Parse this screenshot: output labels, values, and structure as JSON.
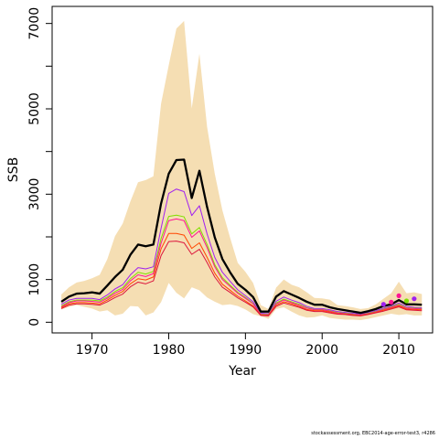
{
  "chart_data": {
    "type": "line",
    "title": "",
    "xlabel": "Year",
    "ylabel": "SSB",
    "xlim": [
      1964.8,
      2014.4
    ],
    "ylim": [
      -250,
      7400
    ],
    "xticks": [
      1970,
      1980,
      1990,
      2000,
      2010
    ],
    "yticks": [
      0,
      1000,
      3000,
      5000,
      7000
    ],
    "yticks_minor": [
      2000,
      4000,
      6000
    ],
    "grid": false,
    "legend": "none",
    "years": [
      1966,
      1967,
      1968,
      1969,
      1970,
      1971,
      1972,
      1973,
      1974,
      1975,
      1976,
      1977,
      1978,
      1979,
      1980,
      1981,
      1982,
      1983,
      1984,
      1985,
      1986,
      1987,
      1988,
      1989,
      1990,
      1991,
      1992,
      1993,
      1994,
      1995,
      1996,
      1997,
      1998,
      1999,
      2000,
      2001,
      2002,
      2003,
      2004,
      2005,
      2006,
      2007,
      2008,
      2009,
      2010,
      2011,
      2012,
      2013
    ],
    "confidence_band": {
      "color": "#f5deb3",
      "upper": [
        650,
        820,
        930,
        970,
        1030,
        1110,
        1480,
        2020,
        2310,
        2830,
        3280,
        3330,
        3420,
        5120,
        6020,
        6880,
        7060,
        5010,
        6290,
        4580,
        3480,
        2620,
        1980,
        1390,
        1180,
        920,
        400,
        310,
        810,
        1000,
        880,
        820,
        700,
        570,
        560,
        530,
        400,
        380,
        350,
        310,
        330,
        420,
        550,
        680,
        950,
        680,
        700,
        660
      ],
      "lower": [
        300,
        360,
        400,
        360,
        320,
        250,
        280,
        160,
        200,
        380,
        370,
        160,
        230,
        470,
        920,
        690,
        560,
        820,
        750,
        580,
        480,
        400,
        420,
        380,
        300,
        190,
        140,
        80,
        310,
        350,
        250,
        160,
        110,
        120,
        160,
        100,
        80,
        60,
        60,
        50,
        80,
        120,
        160,
        200,
        170,
        190,
        160,
        160
      ]
    },
    "series": [
      {
        "color": "#000000",
        "width": 2.3,
        "values": [
          480,
          600,
          670,
          680,
          700,
          670,
          860,
          1060,
          1230,
          1580,
          1820,
          1780,
          1820,
          2780,
          3480,
          3800,
          3810,
          2910,
          3550,
          2700,
          1990,
          1480,
          1170,
          900,
          760,
          590,
          250,
          250,
          600,
          730,
          650,
          570,
          480,
          410,
          410,
          350,
          310,
          280,
          250,
          220,
          260,
          310,
          380,
          420,
          520,
          420,
          420,
          410
        ]
      },
      {
        "color": "#a020f0",
        "width": 1,
        "values": [
          420,
          520,
          560,
          560,
          560,
          530,
          640,
          780,
          880,
          1110,
          1280,
          1250,
          1300,
          2200,
          3020,
          3120,
          3060,
          2500,
          2730,
          2070,
          1520,
          1170,
          960,
          760,
          620,
          480,
          210,
          200,
          490,
          590,
          520,
          460,
          370,
          320,
          320,
          290,
          250,
          230,
          210,
          190,
          230,
          270,
          330,
          380,
          450,
          370,
          350,
          340
        ]
      },
      {
        "color": "#7fdf00",
        "width": 1,
        "values": [
          380,
          480,
          520,
          520,
          520,
          500,
          590,
          720,
          810,
          1020,
          1170,
          1130,
          1190,
          1960,
          2480,
          2510,
          2470,
          2070,
          2220,
          1820,
          1350,
          1040,
          870,
          700,
          580,
          440,
          190,
          180,
          450,
          540,
          480,
          420,
          340,
          300,
          300,
          270,
          230,
          210,
          190,
          170,
          210,
          250,
          310,
          360,
          420,
          340,
          330,
          320
        ]
      },
      {
        "color": "#ff1493",
        "width": 1,
        "values": [
          360,
          460,
          500,
          500,
          490,
          470,
          560,
          680,
          770,
          970,
          1110,
          1070,
          1140,
          1850,
          2380,
          2420,
          2380,
          1990,
          2140,
          1750,
          1300,
          1000,
          840,
          680,
          560,
          430,
          180,
          170,
          430,
          520,
          460,
          400,
          330,
          290,
          290,
          260,
          220,
          200,
          180,
          170,
          200,
          240,
          300,
          350,
          400,
          330,
          320,
          310
        ]
      },
      {
        "color": "#ff4500",
        "width": 1,
        "values": [
          340,
          430,
          460,
          460,
          450,
          430,
          520,
          630,
          720,
          900,
          1020,
          990,
          1060,
          1720,
          2080,
          2080,
          2040,
          1730,
          1860,
          1520,
          1150,
          890,
          750,
          610,
          500,
          380,
          170,
          160,
          400,
          480,
          430,
          370,
          300,
          270,
          270,
          240,
          200,
          190,
          170,
          160,
          190,
          230,
          280,
          330,
          380,
          310,
          300,
          290
        ]
      },
      {
        "color": "#dc143c",
        "width": 1,
        "values": [
          320,
          400,
          430,
          430,
          420,
          400,
          480,
          580,
          660,
          830,
          940,
          900,
          970,
          1560,
          1890,
          1900,
          1860,
          1590,
          1710,
          1400,
          1060,
          820,
          700,
          570,
          470,
          360,
          160,
          150,
          370,
          450,
          400,
          350,
          280,
          250,
          250,
          220,
          190,
          180,
          160,
          150,
          180,
          220,
          260,
          310,
          360,
          290,
          280,
          270
        ]
      }
    ],
    "markers": [
      {
        "x": 2008,
        "y": 420,
        "color": "#a020f0"
      },
      {
        "x": 2009,
        "y": 470,
        "color": "#ff1493"
      },
      {
        "x": 2010,
        "y": 620,
        "color": "#ff1493"
      },
      {
        "x": 2011,
        "y": 500,
        "color": "#7fdf00"
      },
      {
        "x": 2012,
        "y": 550,
        "color": "#a020f0"
      }
    ]
  },
  "footnote": "stockassessment.org, EBC2014-age-error-test3, r4286"
}
